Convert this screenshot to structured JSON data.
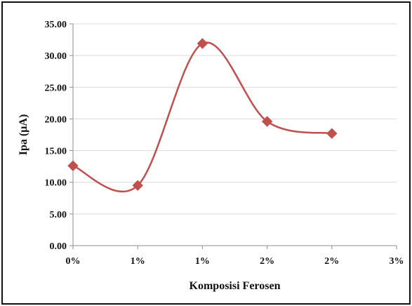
{
  "chart_data": {
    "type": "line",
    "title": "",
    "xlabel": "Komposisi Ferosen",
    "ylabel": "Ipa (µA)",
    "x_tick_labels": [
      "0%",
      "1%",
      "1%",
      "2%",
      "2%",
      "3%"
    ],
    "y_tick_labels": [
      "0.00",
      "5.00",
      "10.00",
      "15.00",
      "20.00",
      "25.00",
      "30.00",
      "35.00"
    ],
    "ylim": [
      0,
      35
    ],
    "y_step": 5,
    "grid": true,
    "legend": "none",
    "smooth": true,
    "series": [
      {
        "marker": "diamond",
        "color": "#c0504d",
        "x_index": [
          0,
          1,
          2,
          3,
          4
        ],
        "values": [
          12.6,
          9.5,
          31.9,
          19.6,
          17.7
        ]
      }
    ]
  }
}
